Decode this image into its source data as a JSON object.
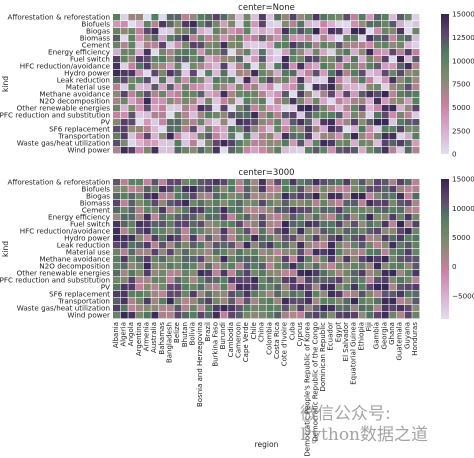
{
  "chart_data": [
    {
      "type": "heatmap",
      "title": "center=None",
      "ylabel": "kind",
      "xlabel": "",
      "rows": [
        "Afforestation & reforestation",
        "Biofuels",
        "Biogas",
        "Biomass",
        "Cement",
        "Energy efficiency",
        "Fuel switch",
        "HFC reduction/avoidance",
        "Hydro power",
        "Leak reduction",
        "Material use",
        "Methane avoidance",
        "N2O decomposition",
        "Other renewable energies",
        "PFC reduction and substitution",
        "PV",
        "SF6 replacement",
        "Transportation",
        "Waste gas/heat utilization",
        "Wind power"
      ],
      "colorbar_ticks": [
        0,
        2500,
        5000,
        7500,
        10000,
        12500,
        15000
      ],
      "colorbar_tick_labels": [
        "0",
        "2500",
        "5000",
        "7500",
        "10000",
        "12500",
        "15000"
      ],
      "vmin": 0,
      "vmax": 15000,
      "center": null,
      "value_model": "random integers 0–15000 (individual cell values are illegible at this resolution)"
    },
    {
      "type": "heatmap",
      "title": "center=3000",
      "ylabel": "kind",
      "xlabel": "region",
      "rows": [
        "Afforestation & reforestation",
        "Biofuels",
        "Biogas",
        "Biomass",
        "Cement",
        "Energy efficiency",
        "Fuel switch",
        "HFC reduction/avoidance",
        "Hydro power",
        "Leak reduction",
        "Material use",
        "Methane avoidance",
        "N2O decomposition",
        "Other renewable energies",
        "PFC reduction and substitution",
        "PV",
        "SF6 replacement",
        "Transportation",
        "Waste gas/heat utilization",
        "Wind power"
      ],
      "columns": [
        "Albania",
        "Algeria",
        "Angola",
        "Argentina",
        "Armenia",
        "Australia",
        "Bahamas",
        "Bangladesh",
        "Belize",
        "Bhutan",
        "Bolivia",
        "Bosnia and Herzegovina",
        "Brazil",
        "Burkina Faso",
        "Burundi",
        "Cambodia",
        "Cameroon",
        "Cape Verde",
        "Chile",
        "China",
        "Colombia",
        "Costa Rica",
        "Cote d'Ivoire",
        "Cuba",
        "Cyprus",
        "Democratic People's Republic of Korea",
        "Democratic Republic of the Congo",
        "Dominican Republic",
        "Ecuador",
        "Egypt",
        "El Salvador",
        "Equatorial Guinea",
        "Ethiopia",
        "Fiji",
        "Gambia",
        "Georgia",
        "Ghana",
        "Guatemala",
        "Guyana",
        "Honduras"
      ],
      "colorbar_ticks": [
        -5000,
        0,
        5000,
        10000,
        15000
      ],
      "colorbar_tick_labels": [
        "−5000",
        "0",
        "5000",
        "10000",
        "15000"
      ],
      "vmin": 0,
      "vmax": 15000,
      "center": 3000,
      "value_model": "same data as the first panel, colormap recentered at 3000"
    }
  ],
  "watermark": {
    "line1": "微信公众号:",
    "line2": "Python数据之道"
  }
}
